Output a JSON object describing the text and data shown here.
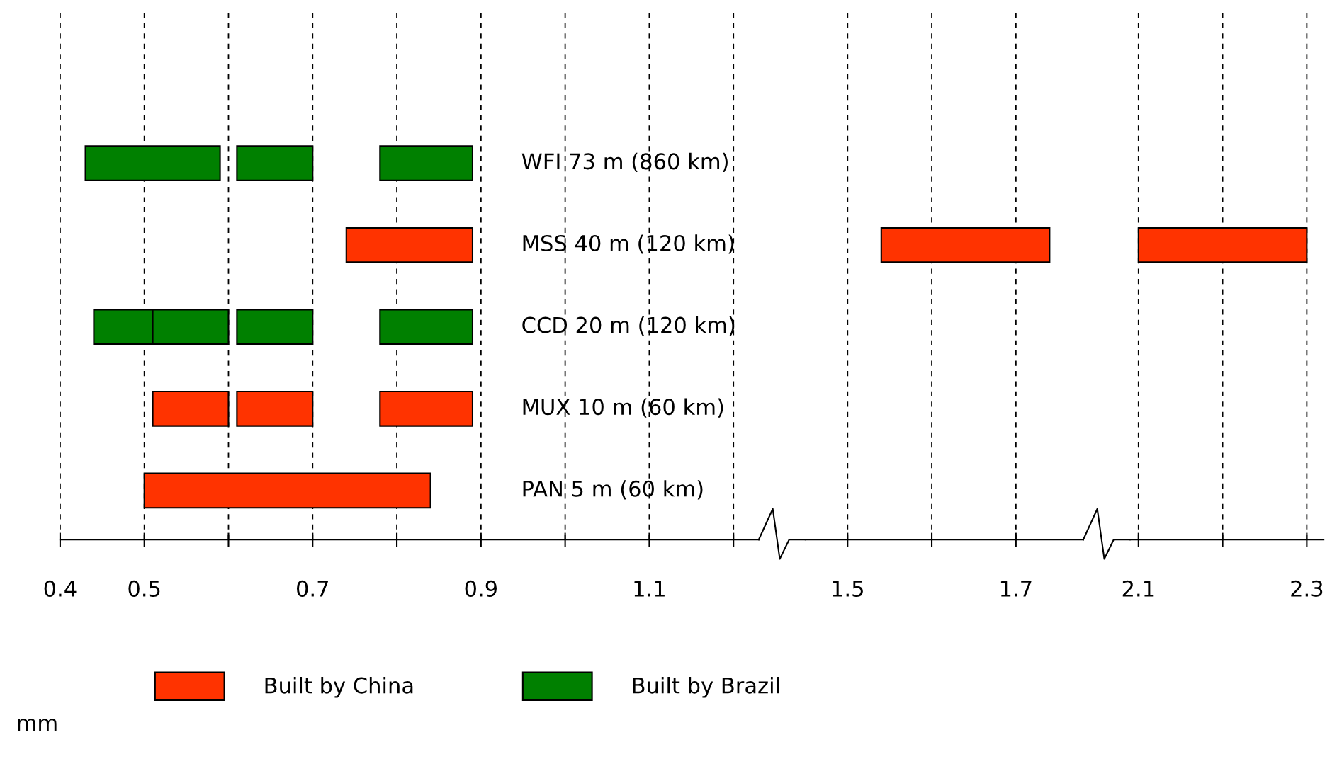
{
  "chart_data": [
    {
      "type": "bar",
      "orientation": "horizontal",
      "xlabel": "mm",
      "categories": [
        "WFI 73 m (860 km)",
        "MSS 40 m (120 km)",
        "CCD 20 m (120 km)",
        "MUX 10 m (60 km)",
        "PAN 5 m (60 km)"
      ],
      "series": [
        {
          "name": "Built by China",
          "color": "#ff3300",
          "values": [
            null,
            0.15,
            null,
            0.09,
            0.34
          ],
          "base": [
            null,
            0.74,
            null,
            0.51,
            0.5
          ]
        },
        {
          "name": "Built by Brazil",
          "color": "#008000",
          "values": [
            0.16,
            null,
            0.07,
            null,
            null
          ],
          "base": [
            0.43,
            null,
            0.44,
            null,
            null
          ]
        },
        {
          "color": "#008000",
          "values": [
            null,
            null,
            0.09,
            null,
            null
          ],
          "base": [
            null,
            null,
            0.51,
            null,
            null
          ]
        },
        {
          "color": "#008000",
          "values": [
            0.09,
            null,
            0.09,
            null,
            null
          ],
          "base": [
            0.61,
            null,
            0.61,
            null,
            null
          ]
        },
        {
          "color": "#008000",
          "values": [
            0.11,
            null,
            0.11,
            null,
            null
          ],
          "base": [
            0.78,
            null,
            0.78,
            null,
            null
          ]
        },
        {
          "color": "#ff3300",
          "values": [
            null,
            null,
            null,
            0.09,
            null
          ],
          "base": [
            null,
            null,
            null,
            0.61,
            null
          ]
        },
        {
          "color": "#ff3300",
          "values": [
            null,
            null,
            null,
            0.11,
            null
          ],
          "base": [
            null,
            null,
            null,
            0.78,
            null
          ]
        }
      ],
      "xlim": [
        0.4,
        1.23
      ],
      "xticks": [
        0.4,
        0.5,
        {
          "value": 0.6,
          "label": null
        },
        0.7,
        {
          "value": 0.8,
          "label": null
        },
        0.9,
        {
          "value": 1.0,
          "label": null
        },
        1.1,
        {
          "value": 1.2,
          "label": null
        }
      ],
      "grid": "x",
      "legend": "bottom"
    },
    {
      "type": "bar",
      "orientation": "horizontal",
      "categories": [
        null,
        null,
        null,
        null,
        null
      ],
      "series": [
        {
          "color": "#ff3300",
          "values": [
            null,
            0.2,
            null,
            null,
            null
          ],
          "base": [
            null,
            1.54,
            null,
            null,
            null
          ]
        }
      ],
      "xlim": [
        1.45,
        1.78
      ],
      "xticks": [
        1.5,
        {
          "value": 1.6,
          "label": null
        },
        1.7
      ],
      "grid": "x"
    },
    {
      "type": "bar",
      "orientation": "horizontal",
      "categories": [
        null,
        null,
        null,
        null,
        null
      ],
      "series": [
        {
          "color": "#ff3300",
          "values": [
            null,
            0.2,
            null,
            null,
            null
          ],
          "base": [
            null,
            2.1,
            null,
            null,
            null
          ]
        }
      ],
      "xlim": [
        2.09,
        2.32
      ],
      "xticks": [
        2.1,
        {
          "value": 2.2,
          "label": null
        },
        2.3
      ],
      "grid": "x"
    }
  ]
}
